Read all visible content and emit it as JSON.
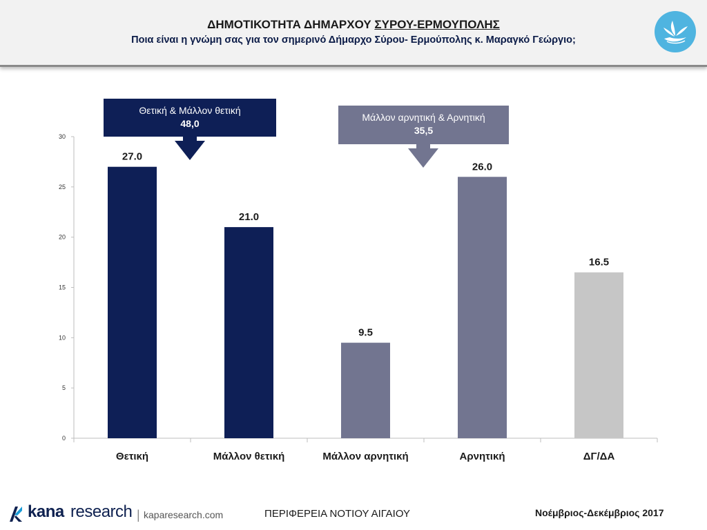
{
  "header": {
    "title_main": "ΔΗΜΟΤΙΚΟΤΗΤΑ ΔΗΜΑΡΧΟΥ ",
    "title_underlined": "ΣΥΡΟΥ-ΕΡΜΟΥΠΟΛΗΣ",
    "subtitle": "Ποια είναι η γνώμη σας για τον σημερινό Δήμαρχο Σύρου- Ερμούπολης κ. Μαραγκό Γεώργιο;"
  },
  "callouts": [
    {
      "label": "Θετική & Μάλλον θετική",
      "value": "48,0",
      "color": "#0e1f56"
    },
    {
      "label": "Μάλλον αρνητική & Αρνητική",
      "value": "35,5",
      "color": "#727590"
    }
  ],
  "chart_data": {
    "type": "bar",
    "categories": [
      "Θετική",
      "Μάλλον θετική",
      "Μάλλον αρνητική",
      "Αρνητική",
      "ΔΓ/ΔΑ"
    ],
    "values": [
      27.0,
      21.0,
      9.5,
      26.0,
      16.5
    ],
    "value_labels": [
      "27.0",
      "21.0",
      "9.5",
      "26.0",
      "16.5"
    ],
    "colors": [
      "#0e1f56",
      "#0e1f56",
      "#727590",
      "#727590",
      "#c6c6c6"
    ],
    "ylim": [
      0,
      30
    ],
    "yticks": [
      0,
      5,
      10,
      15,
      20,
      25,
      30
    ],
    "xlabel": "",
    "ylabel": "",
    "grid": false
  },
  "footer": {
    "brand_bold": "kana",
    "brand_light": "research",
    "separator": "|",
    "url": "kaparesearch.com",
    "region": "ΠΕΡΙΦΕΡΕΙΑ ΝΟΤΙΟΥ ΑΙΓΑΙΟΥ",
    "date": "Νοέμβριος-Δεκέμβριος 2017"
  }
}
